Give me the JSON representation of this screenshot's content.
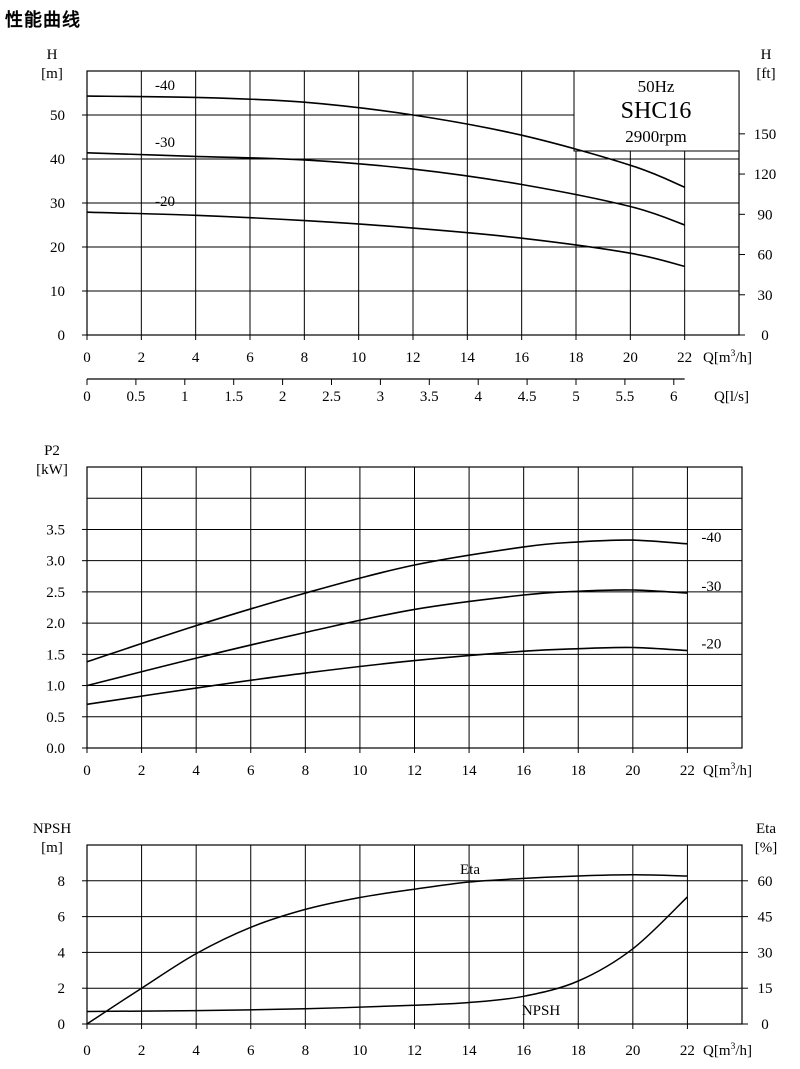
{
  "page": {
    "title": "性能曲线"
  },
  "chart_data": [
    {
      "type": "line",
      "name": "head",
      "title": "",
      "ylabel_left": [
        "H",
        "[m]"
      ],
      "ylabel_right": [
        "H",
        "[ft]"
      ],
      "xlabel": "Q[m³/h]",
      "xlabel2": "Q[l/s]",
      "xlim": [
        0,
        24
      ],
      "ylim": [
        0,
        60
      ],
      "yticks_left": [
        "0",
        "10",
        "20",
        "30",
        "40",
        "50"
      ],
      "yticks_right": [
        {
          "label": "0",
          "value": 0
        },
        {
          "label": "30",
          "value": 9.14
        },
        {
          "label": "60",
          "value": 18.29
        },
        {
          "label": "90",
          "value": 27.43
        },
        {
          "label": "120",
          "value": 36.58
        },
        {
          "label": "150",
          "value": 45.72
        }
      ],
      "xticks": [
        "0",
        "2",
        "4",
        "6",
        "8",
        "10",
        "12",
        "14",
        "16",
        "18",
        "20",
        "22"
      ],
      "xticks2": [
        "0",
        "0.5",
        "1",
        "1.5",
        "2",
        "2.5",
        "3",
        "3.5",
        "4",
        "4.5",
        "5",
        "5.5",
        "6"
      ],
      "grid": true,
      "legend_box": {
        "freq": "50Hz",
        "model": "SHC16",
        "speed": "2900rpm"
      },
      "x": [
        0,
        4,
        8,
        12,
        16,
        20,
        22
      ],
      "series": [
        {
          "name": "-40",
          "values": [
            54.3,
            54.0,
            52.9,
            50.0,
            45.4,
            38.6,
            33.6
          ]
        },
        {
          "name": "-30",
          "values": [
            41.4,
            40.6,
            39.8,
            37.7,
            34.2,
            29.2,
            25.0
          ]
        },
        {
          "name": "-20",
          "values": [
            27.9,
            27.2,
            26.0,
            24.3,
            22.0,
            18.6,
            15.6
          ]
        }
      ]
    },
    {
      "type": "line",
      "name": "power",
      "title": "",
      "ylabel_left": [
        "P2",
        "[kW]"
      ],
      "xlabel": "Q[m³/h]",
      "xlim": [
        0,
        24
      ],
      "ylim": [
        0,
        4.5
      ],
      "yticks_left": [
        "0.0",
        "0.5",
        "1.0",
        "1.5",
        "2.0",
        "2.5",
        "3.0",
        "3.5"
      ],
      "xticks": [
        "0",
        "2",
        "4",
        "6",
        "8",
        "10",
        "12",
        "14",
        "16",
        "18",
        "20",
        "22"
      ],
      "grid": true,
      "x": [
        0,
        4,
        8,
        12,
        16,
        18,
        20,
        22
      ],
      "series": [
        {
          "name": "-40",
          "values": [
            1.38,
            1.96,
            2.48,
            2.93,
            3.22,
            3.3,
            3.33,
            3.27
          ]
        },
        {
          "name": "-30",
          "values": [
            1.0,
            1.44,
            1.85,
            2.22,
            2.45,
            2.51,
            2.53,
            2.48
          ]
        },
        {
          "name": "-20",
          "values": [
            0.7,
            0.96,
            1.2,
            1.4,
            1.55,
            1.59,
            1.61,
            1.56
          ]
        }
      ]
    },
    {
      "type": "line",
      "name": "npsh-eta",
      "title": "",
      "ylabel_left": [
        "NPSH",
        "[m]"
      ],
      "ylabel_right": [
        "Eta",
        "[%]"
      ],
      "xlabel": "Q[m³/h]",
      "xlim": [
        0,
        24
      ],
      "ylim": [
        0,
        10
      ],
      "yticks_left": [
        "0",
        "2",
        "4",
        "6",
        "8"
      ],
      "yticks_right": [
        {
          "label": "0",
          "value": 0
        },
        {
          "label": "15",
          "value": 2
        },
        {
          "label": "30",
          "value": 4
        },
        {
          "label": "45",
          "value": 6
        },
        {
          "label": "60",
          "value": 8
        }
      ],
      "xticks": [
        "0",
        "2",
        "4",
        "6",
        "8",
        "10",
        "12",
        "14",
        "16",
        "18",
        "20",
        "22"
      ],
      "grid": true,
      "series": [
        {
          "name": "NPSH",
          "axis": "left",
          "x": [
            0,
            4,
            8,
            12,
            14,
            16,
            18,
            20,
            22
          ],
          "values": [
            0.7,
            0.75,
            0.85,
            1.05,
            1.2,
            1.55,
            2.4,
            4.2,
            7.1
          ]
        },
        {
          "name": "Eta",
          "axis": "right",
          "x": [
            0,
            2,
            4,
            6,
            8,
            10,
            12,
            14,
            16,
            18,
            20,
            22
          ],
          "values": [
            0,
            15,
            29.5,
            40.5,
            48,
            53,
            56.5,
            59.5,
            61,
            62,
            62.5,
            62
          ]
        }
      ]
    }
  ]
}
